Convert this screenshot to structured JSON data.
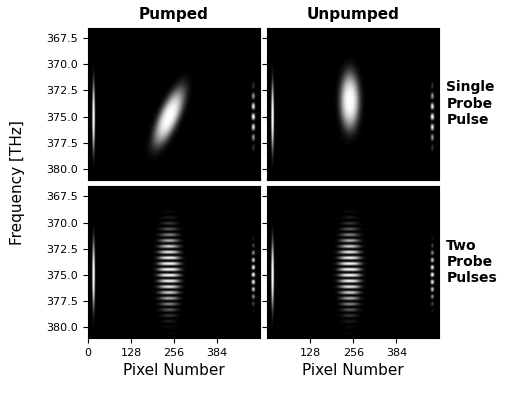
{
  "chart_data": {
    "type": "image",
    "columns": [
      "Pumped",
      "Unpumped"
    ],
    "rows": [
      "Single Probe Pulse",
      "Two Probe Pulses"
    ],
    "xlabel": "Pixel Number",
    "ylabel": "Frequency [THz]",
    "xlim": [
      0,
      512
    ],
    "ylim": [
      381.0,
      366.5
    ],
    "yticks": [
      367.5,
      370.0,
      372.5,
      375.0,
      377.5,
      380.0
    ],
    "color": "gray",
    "panels": [
      {
        "row": 0,
        "col": 0,
        "xticks": [],
        "spots": [
          {
            "x": 16,
            "y": 375.0,
            "x_width": 4,
            "y_width": 3.2,
            "fringe_period": null,
            "tilt": 0
          },
          {
            "x": 240,
            "y": 375.0,
            "x_width": 30,
            "y_width": 2.6,
            "fringe_period": null,
            "tilt": -12
          },
          {
            "x": 490,
            "y": 375.0,
            "x_width": 5,
            "y_width": 2.6,
            "fringe_period": 1.0,
            "tilt": 0
          }
        ]
      },
      {
        "row": 0,
        "col": 1,
        "xticks": [],
        "spots": [
          {
            "x": 16,
            "y": 375.0,
            "x_width": 4,
            "y_width": 3.2,
            "fringe_period": null,
            "tilt": 0
          },
          {
            "x": 245,
            "y": 373.5,
            "x_width": 28,
            "y_width": 2.6,
            "fringe_period": null,
            "tilt": 0
          },
          {
            "x": 490,
            "y": 375.0,
            "x_width": 5,
            "y_width": 2.6,
            "fringe_period": 1.0,
            "tilt": 0
          }
        ]
      },
      {
        "row": 1,
        "col": 0,
        "xticks": [
          0,
          128,
          256,
          384
        ],
        "spots": [
          {
            "x": 16,
            "y": 375.0,
            "x_width": 4,
            "y_width": 3.2,
            "fringe_period": null,
            "tilt": 0
          },
          {
            "x": 240,
            "y": 374.5,
            "x_width": 32,
            "y_width": 3.8,
            "fringe_period": 0.55,
            "tilt": 0
          },
          {
            "x": 490,
            "y": 375.0,
            "x_width": 5,
            "y_width": 2.6,
            "fringe_period": 0.7,
            "tilt": 0
          }
        ]
      },
      {
        "row": 1,
        "col": 1,
        "xticks": [
          128,
          256,
          384
        ],
        "spots": [
          {
            "x": 16,
            "y": 375.0,
            "x_width": 4,
            "y_width": 3.2,
            "fringe_period": null,
            "tilt": 0
          },
          {
            "x": 245,
            "y": 374.5,
            "x_width": 32,
            "y_width": 3.8,
            "fringe_period": 0.55,
            "tilt": 0
          },
          {
            "x": 490,
            "y": 375.0,
            "x_width": 5,
            "y_width": 2.6,
            "fringe_period": 0.7,
            "tilt": 0
          }
        ]
      }
    ]
  }
}
